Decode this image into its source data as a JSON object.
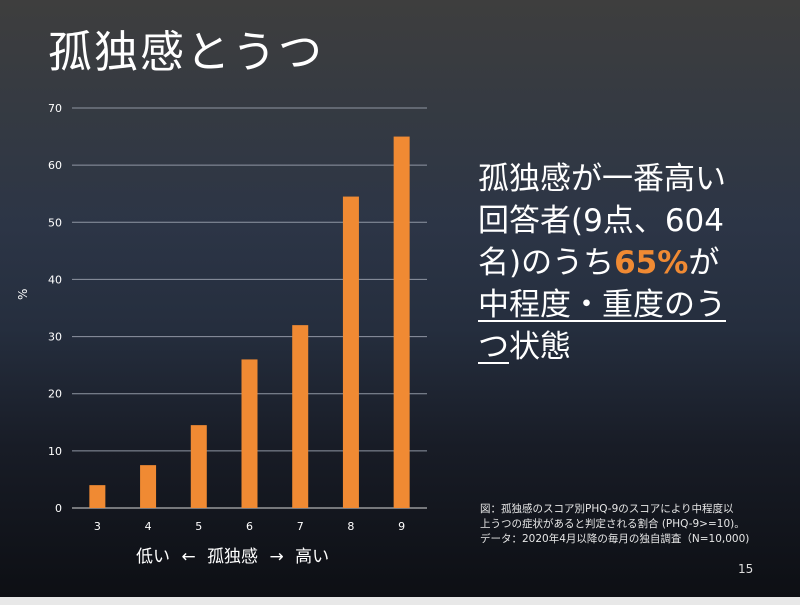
{
  "slide": {
    "title": "孤独感とうつ",
    "callout": {
      "line1": "孤独感が一番高い",
      "line2": "回答者(9点、604",
      "line3a": "名)のうち",
      "line3b": "65%",
      "line3c": "が",
      "line4": "中程度・重度のう",
      "line5a": "つ",
      "line5b": "状態"
    },
    "footnote": {
      "line1": "図：孤独感のスコア別PHQ-9のスコアにより中程度以",
      "line2": "上うつの症状があると判定される割合 (PHQ-9>=10)。",
      "line3": "データ：2020年4月以降の毎月の独自調査（N=10,000)"
    },
    "page_number": "15",
    "highlight_color": "#f08a33"
  },
  "chart_data": {
    "type": "bar",
    "categories": [
      "3",
      "4",
      "5",
      "6",
      "7",
      "8",
      "9"
    ],
    "values": [
      4,
      7.5,
      14.5,
      26,
      32,
      54.5,
      65
    ],
    "ylabel": "%",
    "xlabel_parts": [
      "低い",
      "←",
      "孤独感",
      "→",
      "高い"
    ],
    "ylim": [
      0,
      70
    ],
    "yticks": [
      0,
      10,
      20,
      30,
      40,
      50,
      60,
      70
    ],
    "grid": true,
    "bar_color": "#f08a33"
  }
}
